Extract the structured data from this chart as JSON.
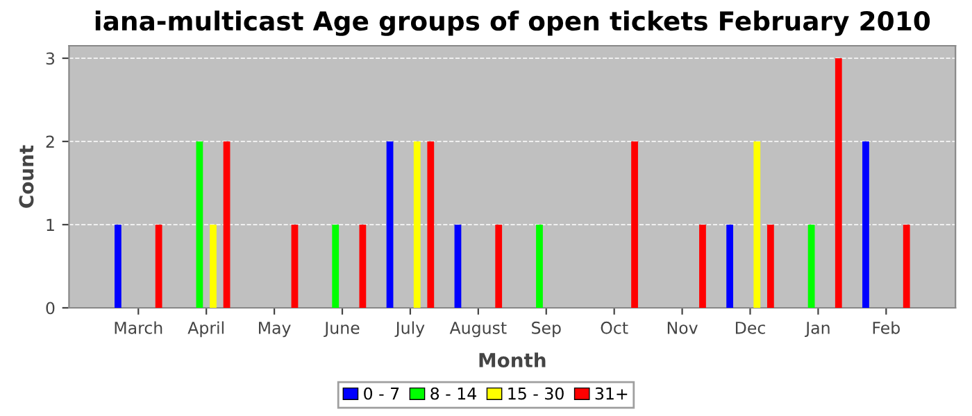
{
  "chart_data": {
    "type": "bar",
    "title": "iana-multicast Age groups of open tickets February 2010",
    "xlabel": "Month",
    "ylabel": "Count",
    "categories": [
      "March",
      "April",
      "May",
      "June",
      "July",
      "August",
      "Sep",
      "Oct",
      "Nov",
      "Dec",
      "Jan",
      "Feb"
    ],
    "series": [
      {
        "name": "0 - 7",
        "color": "#0000ff",
        "values": [
          1,
          0,
          0,
          0,
          2,
          1,
          0,
          0,
          0,
          1,
          0,
          2
        ]
      },
      {
        "name": "8 - 14",
        "color": "#00ff00",
        "values": [
          0,
          2,
          0,
          1,
          0,
          0,
          1,
          0,
          0,
          0,
          1,
          0
        ]
      },
      {
        "name": "15 - 30",
        "color": "#ffff00",
        "values": [
          0,
          1,
          0,
          0,
          2,
          0,
          0,
          0,
          0,
          2,
          0,
          0
        ]
      },
      {
        "name": "31+",
        "color": "#ff0000",
        "values": [
          1,
          2,
          1,
          1,
          2,
          1,
          0,
          2,
          1,
          1,
          3,
          1
        ]
      }
    ],
    "ylim": [
      0,
      3.15
    ],
    "yticks": [
      0,
      1,
      2,
      3
    ],
    "grid": "y",
    "legend": "bottom"
  }
}
